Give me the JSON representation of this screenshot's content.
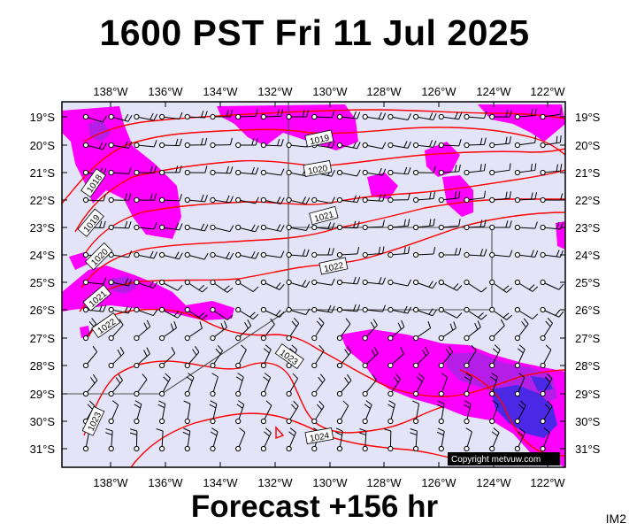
{
  "title": "1600 PST Fri 11 Jul 2025",
  "footer": "Forecast +156 hr",
  "image_code": "IM2",
  "copyright": "Copyright metvuw.com",
  "colors": {
    "background": "#e4e4f8",
    "precip_light": "#ff00ff",
    "precip_medium": "#b41ee6",
    "precip_heavy": "#4b28e6",
    "isobar": "#ff0000",
    "grid_box": "#505050"
  },
  "axes": {
    "lon_labels": [
      "138°W",
      "136°W",
      "134°W",
      "132°W",
      "130°W",
      "128°W",
      "126°W",
      "124°W",
      "122°W"
    ],
    "lat_labels": [
      "19°S",
      "20°S",
      "21°S",
      "22°S",
      "23°S",
      "24°S",
      "25°S",
      "26°S",
      "27°S",
      "28°S",
      "29°S",
      "30°S",
      "31°S"
    ]
  },
  "isobar_labels": [
    "1018",
    "1019",
    "1019",
    "1020",
    "1020",
    "1021",
    "1021",
    "1022",
    "1022",
    "1023",
    "1023",
    "1024"
  ]
}
